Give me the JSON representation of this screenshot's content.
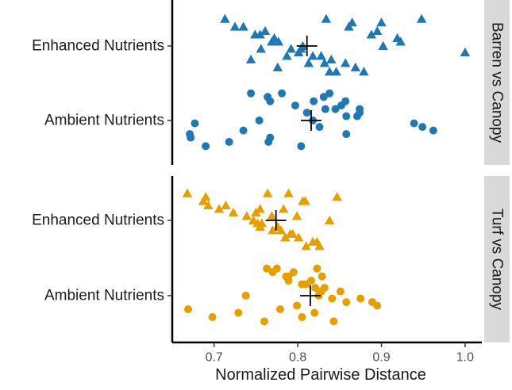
{
  "chart_data": {
    "type": "scatter",
    "xlabel": "Normalized Pairwise Distance",
    "ylabel": "",
    "xlim": [
      0.65,
      1.02
    ],
    "xticks": [
      "0.7",
      "0.8",
      "0.9",
      "1.0"
    ],
    "grid": false,
    "legend": "none",
    "colors": {
      "barren": "#1f78b4",
      "turf": "#e69f00",
      "mean_marker": "#000000",
      "strip_bg": "#d9d9d9"
    },
    "panels": [
      {
        "strip": "Barren vs Canopy",
        "color": "#1f78b4",
        "groups": [
          {
            "label": "Enhanced Nutrients",
            "marker": "triangle",
            "mean": 0.811,
            "points": [
              0.713,
              0.735,
              0.749,
              0.769,
              0.792,
              0.828,
              0.857,
              0.879,
              0.9,
              0.761,
              0.772,
              0.801,
              0.84,
              0.869,
              0.902,
              0.948,
              0.725,
              0.755,
              0.777,
              0.804,
              0.818,
              0.832,
              0.846,
              0.865,
              0.895,
              0.919,
              1.0,
              0.744,
              0.776,
              0.806,
              0.834,
              0.861,
              0.888,
              0.923,
              0.756,
              0.787,
              0.813,
              0.838
            ]
          },
          {
            "label": "Ambient Nutrients",
            "marker": "circle",
            "mean": 0.816,
            "points": [
              0.744,
              0.767,
              0.833,
              0.858,
              0.677,
              0.735,
              0.767,
              0.804,
              0.831,
              0.852,
              0.874,
              0.949,
              0.671,
              0.718,
              0.754,
              0.781,
              0.819,
              0.845,
              0.871,
              0.939,
              0.962,
              0.672,
              0.69,
              0.764,
              0.797,
              0.811,
              0.826,
              0.858,
              0.765,
              0.818,
              0.838,
              0.857,
              0.874
            ]
          }
        ]
      },
      {
        "strip": "Turf vs Canopy",
        "color": "#e69f00",
        "groups": [
          {
            "label": "Enhanced Nutrients",
            "marker": "triangle",
            "mean": 0.774,
            "points": [
              0.789,
              0.806,
              0.783,
              0.799,
              0.752,
              0.77,
              0.785,
              0.81,
              0.69,
              0.714,
              0.75,
              0.776,
              0.794,
              0.818,
              0.838,
              0.668,
              0.687,
              0.706,
              0.739,
              0.757,
              0.78,
              0.801,
              0.826,
              0.847,
              0.693,
              0.723,
              0.755,
              0.791,
              0.823,
              0.747,
              0.764,
              0.809,
              0.755,
              0.769
            ]
          },
          {
            "label": "Ambient Nutrients",
            "marker": "circle",
            "mean": 0.815,
            "points": [
              0.823,
              0.829,
              0.81,
              0.828,
              0.841,
              0.799,
              0.82,
              0.843,
              0.77,
              0.789,
              0.821,
              0.889,
              0.669,
              0.698,
              0.738,
              0.763,
              0.786,
              0.805,
              0.851,
              0.875,
              0.895,
              0.729,
              0.76,
              0.795,
              0.816,
              0.832,
              0.858,
              0.779,
              0.805,
              0.825,
              0.775,
              0.789,
              0.809,
              0.826
            ]
          }
        ]
      }
    ]
  }
}
